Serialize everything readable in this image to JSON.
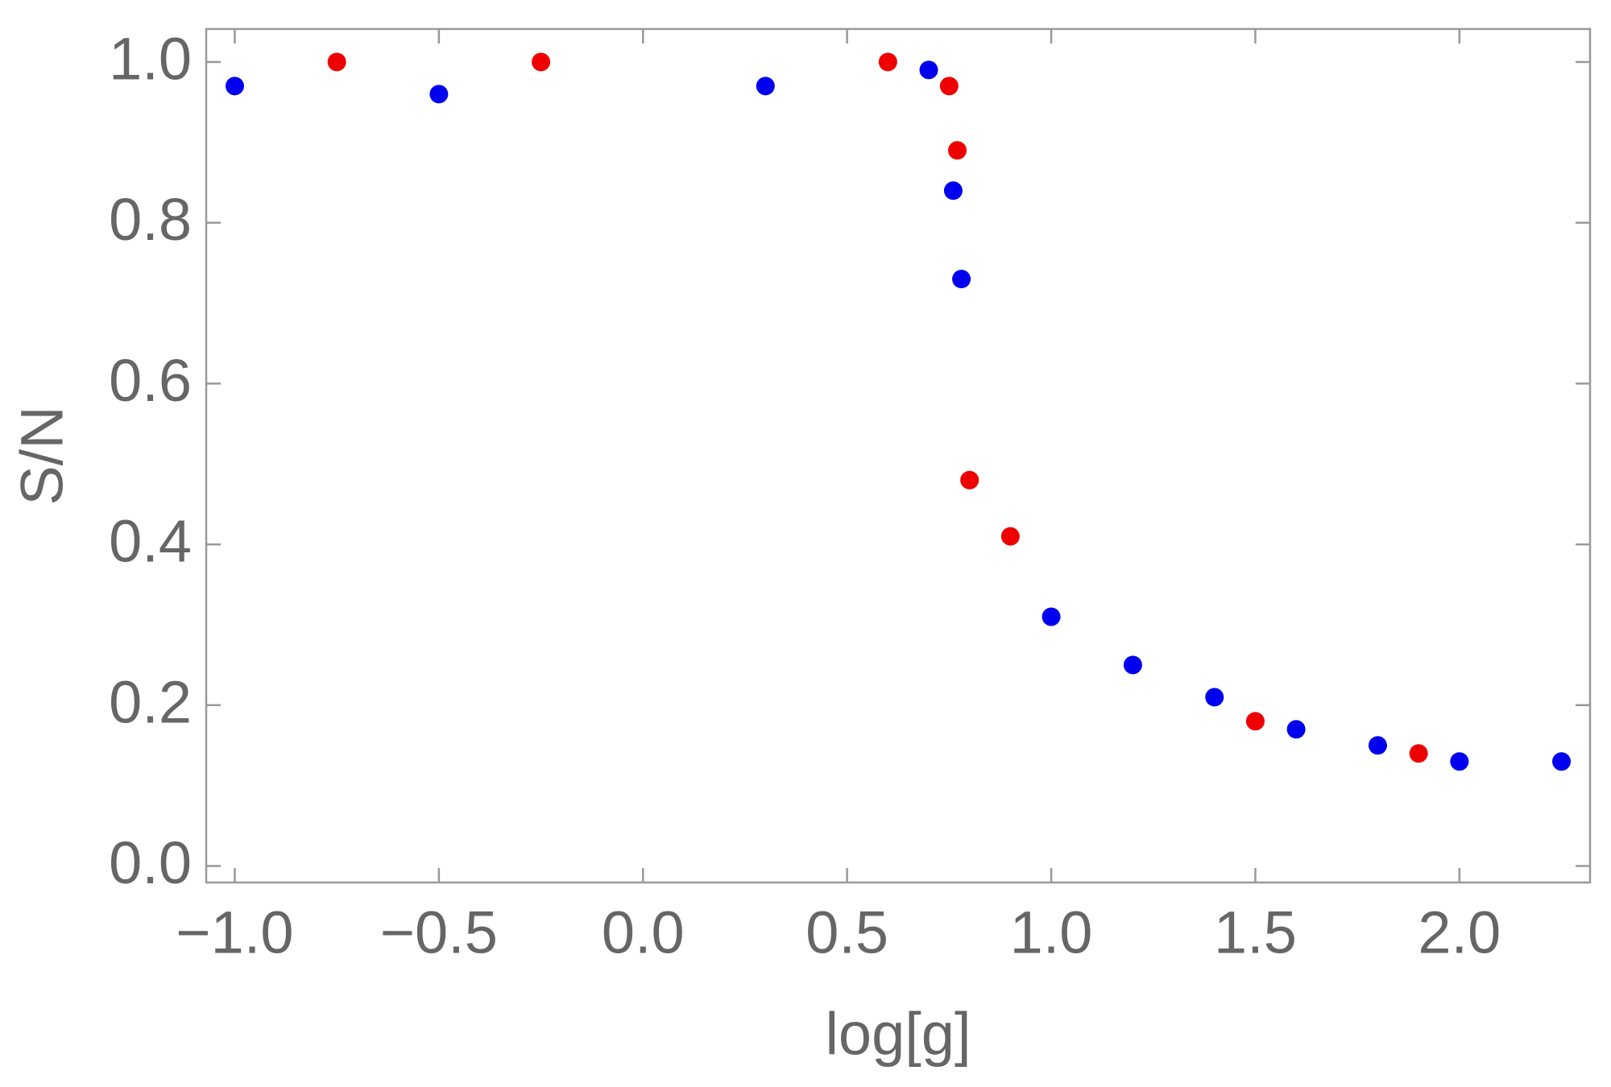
{
  "chart_data": {
    "type": "scatter",
    "xlabel": "log[g]",
    "ylabel": "S/N",
    "series": [
      {
        "color": "#0000ee",
        "x": [
          -1.0,
          -0.5,
          0.3,
          0.7,
          0.76,
          0.78,
          1.0,
          1.2,
          1.4,
          1.6,
          1.8,
          2.0,
          2.25
        ],
        "values": [
          0.97,
          0.96,
          0.97,
          0.99,
          0.84,
          0.73,
          0.31,
          0.25,
          0.21,
          0.17,
          0.15,
          0.13,
          0.13
        ]
      },
      {
        "color": "#ee0000",
        "x": [
          -0.75,
          -0.25,
          0.6,
          0.75,
          0.77,
          0.8,
          0.9,
          1.5,
          1.9
        ],
        "values": [
          1.0,
          1.0,
          1.0,
          0.97,
          0.89,
          0.48,
          0.41,
          0.18,
          0.14
        ]
      }
    ],
    "xlim": [
      -1.07,
      2.32
    ],
    "ylim": [
      -0.0205,
      1.041
    ],
    "xticks": [
      {
        "value": -1,
        "label": "−1.0"
      },
      {
        "value": -0.5,
        "label": "−0.5"
      },
      {
        "value": 0,
        "label": "0.0"
      },
      0.5,
      {
        "value": 1,
        "label": "1.0"
      },
      1.5,
      {
        "value": 2,
        "label": "2.0"
      }
    ],
    "yticks": [
      {
        "value": 0,
        "label": "0.0"
      },
      0.2,
      0.4,
      0.6,
      0.8,
      {
        "value": 1,
        "label": "1.0"
      }
    ]
  }
}
